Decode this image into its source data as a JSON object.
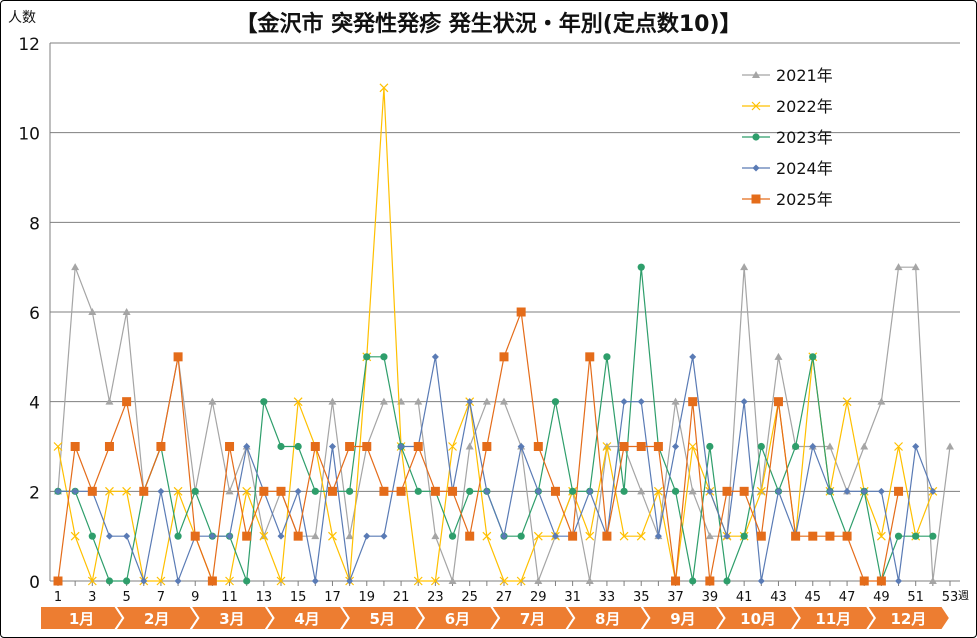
{
  "chart_data": {
    "type": "line",
    "title": "【金沢市 突発性発疹 発生状況・年別(定点数10)】",
    "ylabel": "人数",
    "xlabel": "週",
    "ylim": [
      0,
      12
    ],
    "yticks": [
      0,
      2,
      4,
      6,
      8,
      10,
      12
    ],
    "xlim": [
      1,
      53
    ],
    "xticks": [
      1,
      3,
      5,
      7,
      9,
      11,
      13,
      15,
      17,
      19,
      21,
      23,
      25,
      27,
      29,
      31,
      33,
      35,
      37,
      39,
      41,
      43,
      45,
      47,
      49,
      51,
      53
    ],
    "grid": "horizontal",
    "legend_placement": "top-right",
    "months": [
      "1月",
      "2月",
      "3月",
      "4月",
      "5月",
      "6月",
      "7月",
      "8月",
      "9月",
      "10月",
      "11月",
      "12月"
    ],
    "month_bar_color": "#ed7d31",
    "series": [
      {
        "name": "2021年",
        "color": "#a5a5a5",
        "marker": "triangle",
        "values": [
          2,
          7,
          6,
          4,
          6,
          2,
          3,
          5,
          2,
          4,
          2,
          3,
          1,
          2,
          1,
          1,
          4,
          1,
          3,
          4,
          4,
          4,
          1,
          0,
          3,
          4,
          4,
          3,
          0,
          1,
          2,
          0,
          3,
          3,
          2,
          1,
          4,
          2,
          1,
          1,
          7,
          2,
          5,
          3,
          3,
          3,
          2,
          3,
          4,
          7,
          7,
          0,
          3
        ]
      },
      {
        "name": "2022年",
        "color": "#ffc000",
        "marker": "x",
        "values": [
          3,
          1,
          0,
          2,
          2,
          0,
          0,
          2,
          1,
          0,
          0,
          2,
          1,
          0,
          4,
          3,
          1,
          0,
          5,
          11,
          3,
          0,
          0,
          3,
          4,
          1,
          0,
          0,
          1,
          1,
          2,
          1,
          3,
          1,
          1,
          2,
          0,
          3,
          2,
          1,
          1,
          2,
          4,
          1,
          5,
          2,
          4,
          2,
          1,
          3,
          1,
          2,
          null
        ]
      },
      {
        "name": "2023年",
        "color": "#2e9e6b",
        "marker": "circle",
        "values": [
          2,
          2,
          1,
          0,
          0,
          2,
          3,
          1,
          2,
          1,
          1,
          0,
          4,
          3,
          3,
          2,
          2,
          2,
          5,
          5,
          3,
          2,
          2,
          1,
          2,
          2,
          1,
          1,
          2,
          4,
          2,
          2,
          5,
          2,
          7,
          3,
          2,
          0,
          3,
          0,
          1,
          3,
          2,
          3,
          5,
          2,
          1,
          2,
          0,
          1,
          1,
          1,
          null
        ]
      },
      {
        "name": "2024年",
        "color": "#5a7bb5",
        "marker": "diamond",
        "values": [
          2,
          2,
          2,
          1,
          1,
          0,
          2,
          0,
          1,
          1,
          1,
          3,
          2,
          1,
          2,
          0,
          3,
          0,
          1,
          1,
          3,
          3,
          5,
          2,
          4,
          2,
          1,
          3,
          2,
          1,
          1,
          2,
          1,
          4,
          4,
          1,
          3,
          5,
          2,
          1,
          4,
          0,
          2,
          1,
          3,
          2,
          2,
          2,
          2,
          0,
          3,
          2,
          null
        ]
      },
      {
        "name": "2025年",
        "color": "#e46c1a",
        "marker": "square",
        "values": [
          0,
          3,
          2,
          3,
          4,
          2,
          3,
          5,
          1,
          0,
          3,
          1,
          2,
          2,
          1,
          3,
          2,
          3,
          3,
          2,
          2,
          3,
          2,
          2,
          1,
          3,
          5,
          6,
          3,
          2,
          1,
          5,
          1,
          3,
          3,
          3,
          0,
          4,
          0,
          2,
          2,
          1,
          4,
          1,
          1,
          1,
          1,
          0,
          0,
          2,
          null,
          null,
          null
        ]
      }
    ]
  }
}
